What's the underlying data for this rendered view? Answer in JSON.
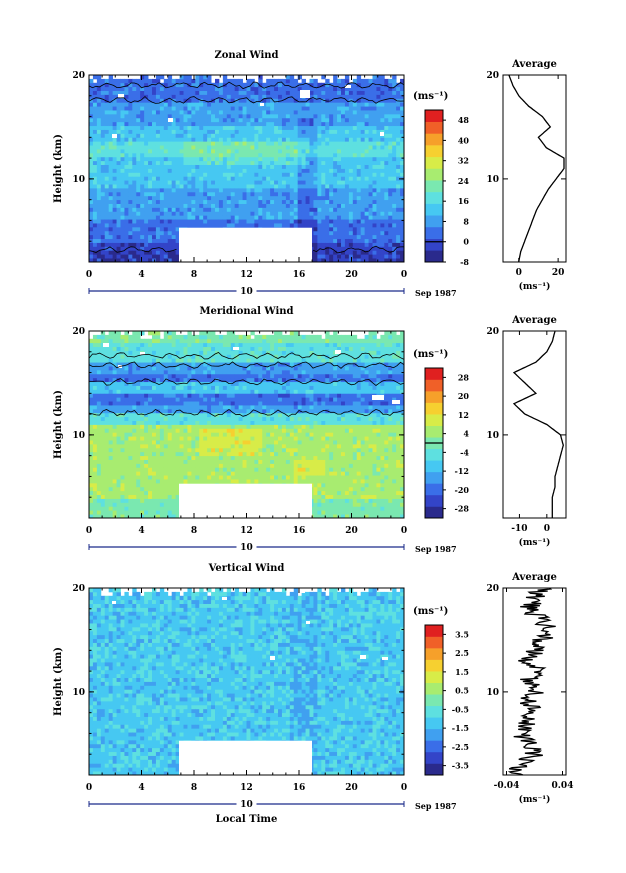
{
  "colors": {
    "scale": [
      "#2a2a8c",
      "#3344c8",
      "#3a6ee8",
      "#40a0f0",
      "#46c8f2",
      "#5ee0e0",
      "#7ae8b0",
      "#a8ec70",
      "#d8ec48",
      "#f6d030",
      "#f6a02a",
      "#f06028",
      "#e02020"
    ],
    "mask": "#ffffff",
    "frame": "#000000"
  },
  "common": {
    "ylabel": "Height (km)",
    "xticks": [
      "0",
      "4",
      "8",
      "12",
      "16",
      "20",
      "0"
    ],
    "yticks_main": [
      "10",
      "20"
    ],
    "date_day": "10",
    "date_label": "Sep 1987",
    "unit": "(ms⁻¹)",
    "avg_title": "Average",
    "xlabel_bottom": "Local Time"
  },
  "chart_data": [
    {
      "type": "heatmap",
      "title": "Zonal Wind",
      "xlabel": "",
      "ylabel": "Height (km)",
      "xlim": [
        0,
        24
      ],
      "ylim": [
        2,
        20
      ],
      "colorbar_ticks": [
        "48",
        "40",
        "32",
        "24",
        "16",
        "8",
        "0",
        "-8"
      ],
      "colorbar_range": [
        -8,
        52
      ],
      "average": {
        "title": "Average",
        "xlabel": "(ms⁻¹)",
        "xticks": [
          "0",
          "20"
        ],
        "xlim": [
          -8,
          24
        ],
        "height": [
          2,
          3,
          4,
          5,
          6,
          7,
          8,
          9,
          10,
          11,
          12,
          13,
          14,
          15,
          16,
          17,
          18,
          19,
          20
        ],
        "value": [
          0,
          1,
          3,
          5,
          7,
          9,
          12,
          15,
          19,
          23,
          23,
          14,
          10,
          16,
          12,
          5,
          0,
          -3,
          -5
        ]
      }
    },
    {
      "type": "heatmap",
      "title": "Meridional Wind",
      "xlabel": "",
      "ylabel": "Height (km)",
      "xlim": [
        0,
        24
      ],
      "ylim": [
        2,
        20
      ],
      "colorbar_ticks": [
        "28",
        "20",
        "12",
        "4",
        "-4",
        "-12",
        "-20",
        "-28"
      ],
      "colorbar_range": [
        -32,
        32
      ],
      "average": {
        "title": "Average",
        "xlabel": "(ms⁻¹)",
        "xticks": [
          "-10",
          "0"
        ],
        "xlim": [
          -16,
          7
        ],
        "height": [
          2,
          3,
          4,
          5,
          6,
          7,
          8,
          9,
          10,
          11,
          12,
          13,
          14,
          15,
          16,
          17,
          18,
          19,
          20
        ],
        "value": [
          2,
          2,
          2,
          3,
          3,
          4,
          5,
          6,
          5,
          0,
          -8,
          -12,
          -4,
          -8,
          -12,
          -4,
          0,
          2,
          3
        ]
      }
    },
    {
      "type": "heatmap",
      "title": "Vertical Wind",
      "xlabel": "Local Time",
      "ylabel": "Height (km)",
      "xlim": [
        0,
        24
      ],
      "ylim": [
        2,
        20
      ],
      "colorbar_ticks": [
        "3.5",
        "2.5",
        "1.5",
        "0.5",
        "-0.5",
        "-1.5",
        "-2.5",
        "-3.5"
      ],
      "colorbar_range": [
        -4,
        4
      ],
      "average": {
        "title": "Average",
        "xlabel": "(ms⁻¹)",
        "xticks": [
          "-0.04",
          "0.04"
        ],
        "xlim": [
          -0.045,
          0.045
        ],
        "height": [
          2,
          3,
          4,
          5,
          6,
          7,
          8,
          9,
          10,
          11,
          12,
          13,
          14,
          15,
          16,
          17,
          18,
          19,
          20
        ],
        "value": [
          -0.03,
          -0.02,
          0.0,
          -0.01,
          -0.02,
          -0.01,
          0.0,
          -0.01,
          0.0,
          -0.01,
          0.01,
          -0.01,
          0.0,
          0.01,
          0.02,
          0.01,
          -0.01,
          0.0,
          0.01
        ]
      }
    }
  ]
}
